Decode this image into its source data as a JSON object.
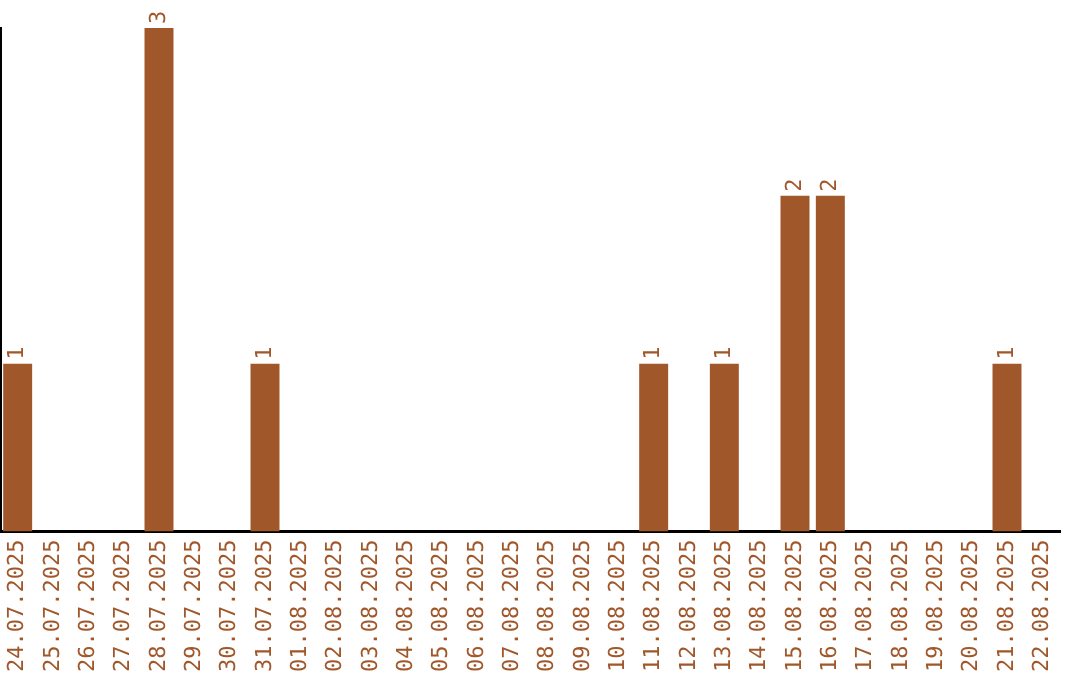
{
  "chart_data": {
    "type": "bar",
    "categories": [
      "24.07.2025",
      "25.07.2025",
      "26.07.2025",
      "27.07.2025",
      "28.07.2025",
      "29.07.2025",
      "30.07.2025",
      "31.07.2025",
      "01.08.2025",
      "02.08.2025",
      "03.08.2025",
      "04.08.2025",
      "05.08.2025",
      "06.08.2025",
      "07.08.2025",
      "08.08.2025",
      "09.08.2025",
      "10.08.2025",
      "11.08.2025",
      "12.08.2025",
      "13.08.2025",
      "14.08.2025",
      "15.08.2025",
      "16.08.2025",
      "17.08.2025",
      "18.08.2025",
      "19.08.2025",
      "20.08.2025",
      "21.08.2025",
      "22.08.2025"
    ],
    "values": [
      1,
      0,
      0,
      0,
      3,
      0,
      0,
      1,
      0,
      0,
      0,
      0,
      0,
      0,
      0,
      0,
      0,
      0,
      1,
      0,
      1,
      0,
      2,
      2,
      0,
      0,
      0,
      0,
      1,
      0
    ],
    "value_labels": [
      "1",
      null,
      null,
      null,
      "3",
      null,
      null,
      "1",
      null,
      null,
      null,
      null,
      null,
      null,
      null,
      null,
      null,
      null,
      "1",
      null,
      "1",
      null,
      "2",
      "2",
      null,
      null,
      null,
      null,
      "1",
      null
    ],
    "color": "#a0572a",
    "tick_labels": "x",
    "grid": false,
    "legend": false
  }
}
